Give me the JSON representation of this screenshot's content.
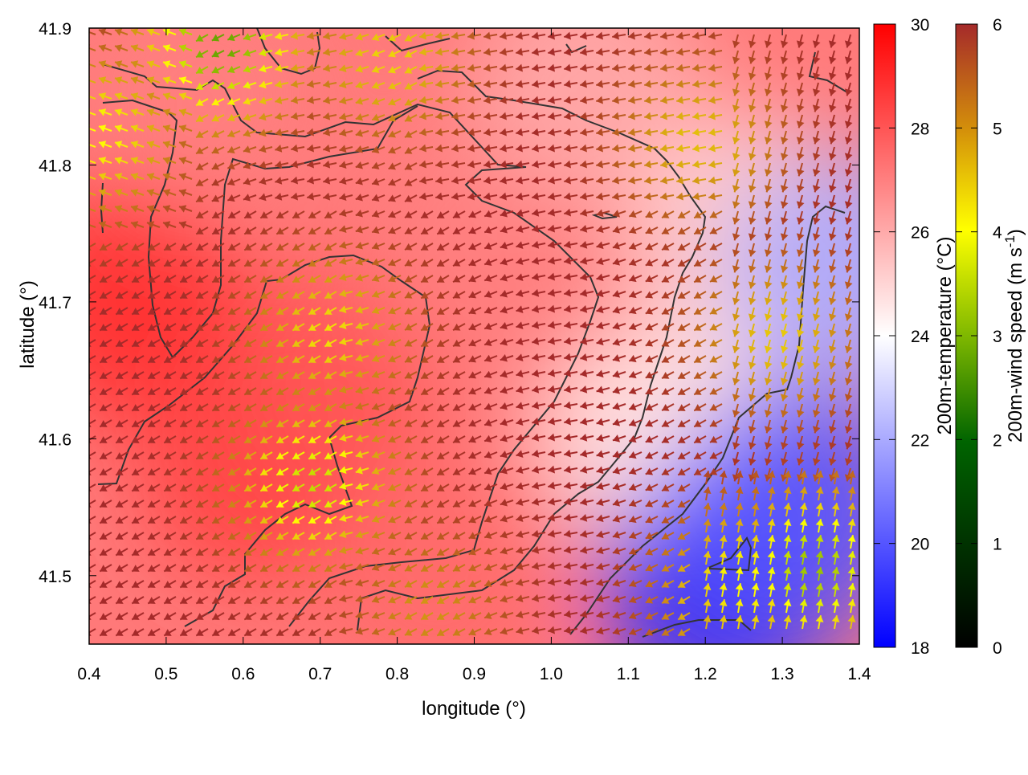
{
  "chart_data": {
    "type": "heatmap",
    "title": "",
    "xlabel": "longitude (°)",
    "ylabel": "latitude (°)",
    "xlim": [
      0.4,
      1.4
    ],
    "ylim": [
      41.45,
      41.9
    ],
    "x_ticks": [
      "0.4",
      "0.5",
      "0.6",
      "0.7",
      "0.8",
      "0.9",
      "1.0",
      "1.1",
      "1.2",
      "1.3",
      "1.4"
    ],
    "y_ticks": [
      "41.5",
      "41.6",
      "41.7",
      "41.8",
      "41.9"
    ],
    "grid": false,
    "legend": "none",
    "colorbars": [
      {
        "label": "200m-temperature (°C)",
        "range": [
          18,
          30
        ],
        "ticks": [
          "18",
          "20",
          "22",
          "24",
          "26",
          "28",
          "30"
        ],
        "palette": [
          "#0000ff",
          "#ffffff",
          "#ff0000"
        ]
      },
      {
        "label": "200m-wind speed (m s-1)",
        "label_main": "200m-wind speed (m s",
        "label_sup": "-1",
        "label_close": ")",
        "range": [
          0,
          6
        ],
        "ticks": [
          "0",
          "1",
          "2",
          "3",
          "4",
          "5",
          "6"
        ],
        "palette": [
          "#000000",
          "#006400",
          "#ffff00",
          "#a52a2a"
        ]
      }
    ],
    "temperature_hotspots": [
      {
        "lon": 0.45,
        "lat": 41.7,
        "value": 29
      },
      {
        "lon": 0.62,
        "lat": 41.58,
        "value": 28.5
      },
      {
        "lon": 0.75,
        "lat": 41.65,
        "value": 28
      },
      {
        "lon": 0.9,
        "lat": 41.75,
        "value": 27
      },
      {
        "lon": 1.0,
        "lat": 41.62,
        "value": 27
      },
      {
        "lon": 0.55,
        "lat": 41.85,
        "value": 27
      },
      {
        "lon": 1.05,
        "lat": 41.86,
        "value": 26
      },
      {
        "lon": 1.25,
        "lat": 41.75,
        "value": 25
      },
      {
        "lon": 1.15,
        "lat": 41.6,
        "value": 24.5
      },
      {
        "lon": 1.22,
        "lat": 41.49,
        "value": 19
      },
      {
        "lon": 1.32,
        "lat": 41.55,
        "value": 20
      },
      {
        "lon": 1.38,
        "lat": 41.72,
        "value": 22
      },
      {
        "lon": 0.85,
        "lat": 41.5,
        "value": 27.5
      }
    ],
    "wind_slow_zones": [
      {
        "lon": 0.58,
        "lat": 41.89,
        "speed": 2.8
      },
      {
        "lon": 0.42,
        "lat": 41.82,
        "speed": 4
      },
      {
        "lon": 0.72,
        "lat": 41.68,
        "speed": 4.3
      },
      {
        "lon": 0.7,
        "lat": 41.57,
        "speed": 3.5
      },
      {
        "lon": 0.8,
        "lat": 41.88,
        "speed": 4.4
      },
      {
        "lon": 1.2,
        "lat": 41.82,
        "speed": 4.6
      },
      {
        "lon": 1.3,
        "lat": 41.68,
        "speed": 4.5
      },
      {
        "lon": 1.25,
        "lat": 41.49,
        "speed": 4
      },
      {
        "lon": 1.34,
        "lat": 41.5,
        "speed": 3.2
      },
      {
        "lon": 0.85,
        "lat": 41.48,
        "speed": 5
      }
    ]
  }
}
